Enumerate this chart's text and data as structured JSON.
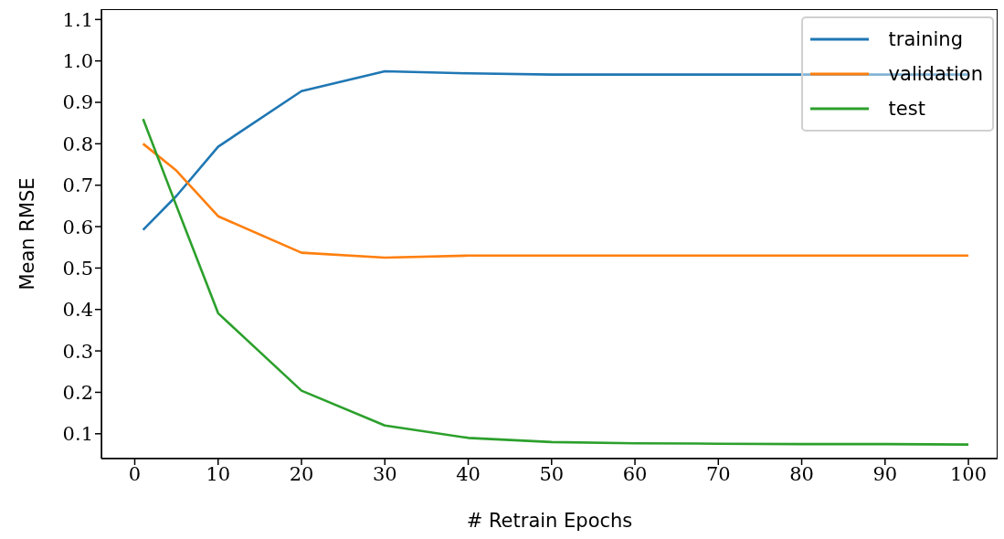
{
  "chart_data": {
    "type": "line",
    "xlabel": "# Retrain Epochs",
    "ylabel": "Mean RMSE",
    "x": [
      1,
      5,
      10,
      20,
      30,
      40,
      50,
      60,
      70,
      80,
      90,
      100
    ],
    "series": [
      {
        "name": "training",
        "color": "#1f77b4",
        "values": [
          0.592,
          0.674,
          0.793,
          0.927,
          0.975,
          0.97,
          0.967,
          0.967,
          0.967,
          0.967,
          0.967,
          0.967
        ]
      },
      {
        "name": "validation",
        "color": "#ff7f0e",
        "values": [
          0.8,
          0.735,
          0.625,
          0.537,
          0.525,
          0.53,
          0.53,
          0.53,
          0.53,
          0.53,
          0.53,
          0.53
        ]
      },
      {
        "name": "test",
        "color": "#2ca02c",
        "values": [
          0.86,
          0.65,
          0.391,
          0.204,
          0.12,
          0.09,
          0.08,
          0.077,
          0.076,
          0.075,
          0.075,
          0.074
        ]
      }
    ],
    "xlim": [
      -4,
      103.5
    ],
    "xticks": [
      0,
      10,
      20,
      30,
      40,
      50,
      60,
      70,
      80,
      90,
      100
    ],
    "ylim": [
      0.04,
      1.125
    ],
    "yticks": [
      0.1,
      0.2,
      0.3,
      0.4,
      0.5,
      0.6,
      0.7,
      0.8,
      0.9,
      {
        "value": 1,
        "label": "1.0"
      },
      1.1
    ],
    "legend": "top right",
    "grid": false,
    "marker": "none",
    "line_style": "solid"
  }
}
